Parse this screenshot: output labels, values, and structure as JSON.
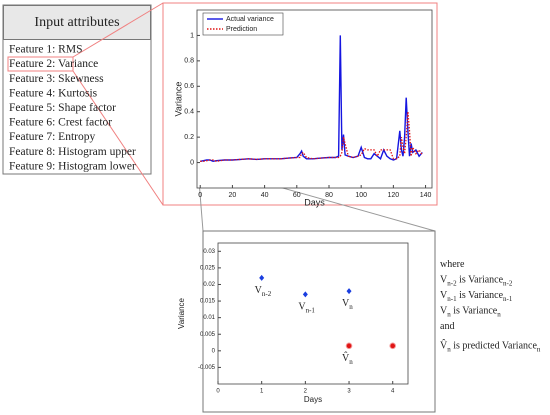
{
  "input_attributes": {
    "title": "Input attributes",
    "items": [
      "Feature 1: RMS",
      "Feature 2: Variance",
      "Feature 3: Skewness",
      "Feature 4: Kurtosis",
      "Feature 5: Shape factor",
      "Feature 6: Crest factor",
      "Feature 7: Entropy",
      "Feature 8: Histogram upper",
      "Feature 9: Histogram lower"
    ]
  },
  "chart_data": [
    {
      "type": "line",
      "xlabel": "Days",
      "ylabel": "Variance",
      "x": [
        0,
        2,
        4,
        6,
        8,
        10,
        15,
        20,
        25,
        30,
        35,
        40,
        45,
        50,
        55,
        60,
        62,
        63,
        64,
        66,
        70,
        75,
        80,
        84,
        86,
        87,
        88,
        89,
        90,
        92,
        95,
        98,
        100,
        102,
        104,
        106,
        108,
        110,
        112,
        114,
        116,
        118,
        120,
        122,
        124,
        125,
        126,
        127,
        128,
        129,
        130,
        131,
        132,
        134,
        136,
        138
      ],
      "series": [
        {
          "name": "Actual variance",
          "color": "#1515e0",
          "linestyle": "solid",
          "values": [
            0.01,
            0.015,
            0.02,
            0.02,
            0.01,
            0.015,
            0.02,
            0.02,
            0.025,
            0.03,
            0.025,
            0.03,
            0.03,
            0.03,
            0.035,
            0.04,
            0.07,
            0.09,
            0.05,
            0.03,
            0.03,
            0.035,
            0.04,
            0.04,
            0.05,
            1.0,
            0.1,
            0.22,
            0.06,
            0.05,
            0.04,
            0.05,
            0.12,
            0.04,
            0.03,
            0.03,
            0.07,
            0.05,
            0.03,
            0.1,
            0.05,
            0.03,
            0.02,
            0.03,
            0.25,
            0.1,
            0.05,
            0.2,
            0.51,
            0.25,
            0.05,
            0.15,
            0.08,
            0.1,
            0.05,
            0.08
          ]
        },
        {
          "name": "Prediction",
          "color": "#e01515",
          "linestyle": "dotted",
          "values": [
            0.01,
            0.01,
            0.015,
            0.02,
            0.02,
            0.01,
            0.02,
            0.02,
            0.025,
            0.03,
            0.025,
            0.03,
            0.03,
            0.03,
            0.035,
            0.04,
            0.04,
            0.07,
            0.08,
            0.04,
            0.03,
            0.035,
            0.04,
            0.04,
            0.04,
            0.05,
            0.08,
            0.2,
            0.15,
            0.05,
            0.04,
            0.05,
            0.06,
            0.11,
            0.1,
            0.1,
            0.1,
            0.05,
            0.1,
            0.1,
            0.1,
            0.1,
            0.03,
            0.03,
            0.05,
            0.2,
            0.12,
            0.07,
            0.2,
            0.4,
            0.25,
            0.05,
            0.12,
            0.07,
            0.1,
            0.06
          ]
        }
      ],
      "xlim": [
        -2,
        144
      ],
      "ylim": [
        -0.2,
        1.2
      ],
      "xticks": [
        0,
        20,
        40,
        60,
        80,
        100,
        120,
        140
      ],
      "yticks": [
        0,
        0.2,
        0.4,
        0.6,
        0.8,
        1
      ],
      "legend": "upper left",
      "grid": false
    },
    {
      "type": "scatter",
      "xlabel": "Days",
      "ylabel": "Variance",
      "series": [
        {
          "color": "#1a3ee0",
          "marker": "diamond",
          "x": [
            1,
            2,
            3
          ],
          "values": [
            0.022,
            0.017,
            0.018
          ],
          "point_labels": [
            {
              "base": "V",
              "sub": "n-2"
            },
            {
              "base": "V",
              "sub": "n-1"
            },
            {
              "base": "V",
              "sub": "n"
            }
          ]
        },
        {
          "color": "#e01515",
          "marker": "circle",
          "x": [
            3,
            4
          ],
          "values": [
            0.0015,
            0.0015
          ],
          "point_labels": [
            {
              "base": "V̂",
              "sub": "n"
            },
            null
          ]
        }
      ],
      "xlim": [
        0,
        4.35
      ],
      "ylim": [
        -0.01,
        0.0325
      ],
      "xticks": [
        0,
        1,
        2,
        3,
        4
      ],
      "yticks": [
        -0.005,
        0,
        0.005,
        0.01,
        0.015,
        0.02,
        0.025,
        0.03
      ],
      "grid": false
    }
  ],
  "notes": [
    [
      {
        "text": "where"
      }
    ],
    [
      {
        "text": "V"
      },
      {
        "sub": "n-2"
      },
      {
        "text": " is Variance"
      },
      {
        "sub": "n-2"
      }
    ],
    [
      {
        "text": "V"
      },
      {
        "sub": "n-1"
      },
      {
        "text": " is Variance"
      },
      {
        "sub": "n-1"
      }
    ],
    [
      {
        "text": "V"
      },
      {
        "sub": "n"
      },
      {
        "text": " is Variance"
      },
      {
        "sub": "n"
      }
    ],
    [
      {
        "text": "and"
      }
    ],
    [
      {
        "text": "V̂"
      },
      {
        "sub": "n"
      },
      {
        "text": "  is predicted Variance"
      },
      {
        "sub": "n"
      }
    ]
  ]
}
